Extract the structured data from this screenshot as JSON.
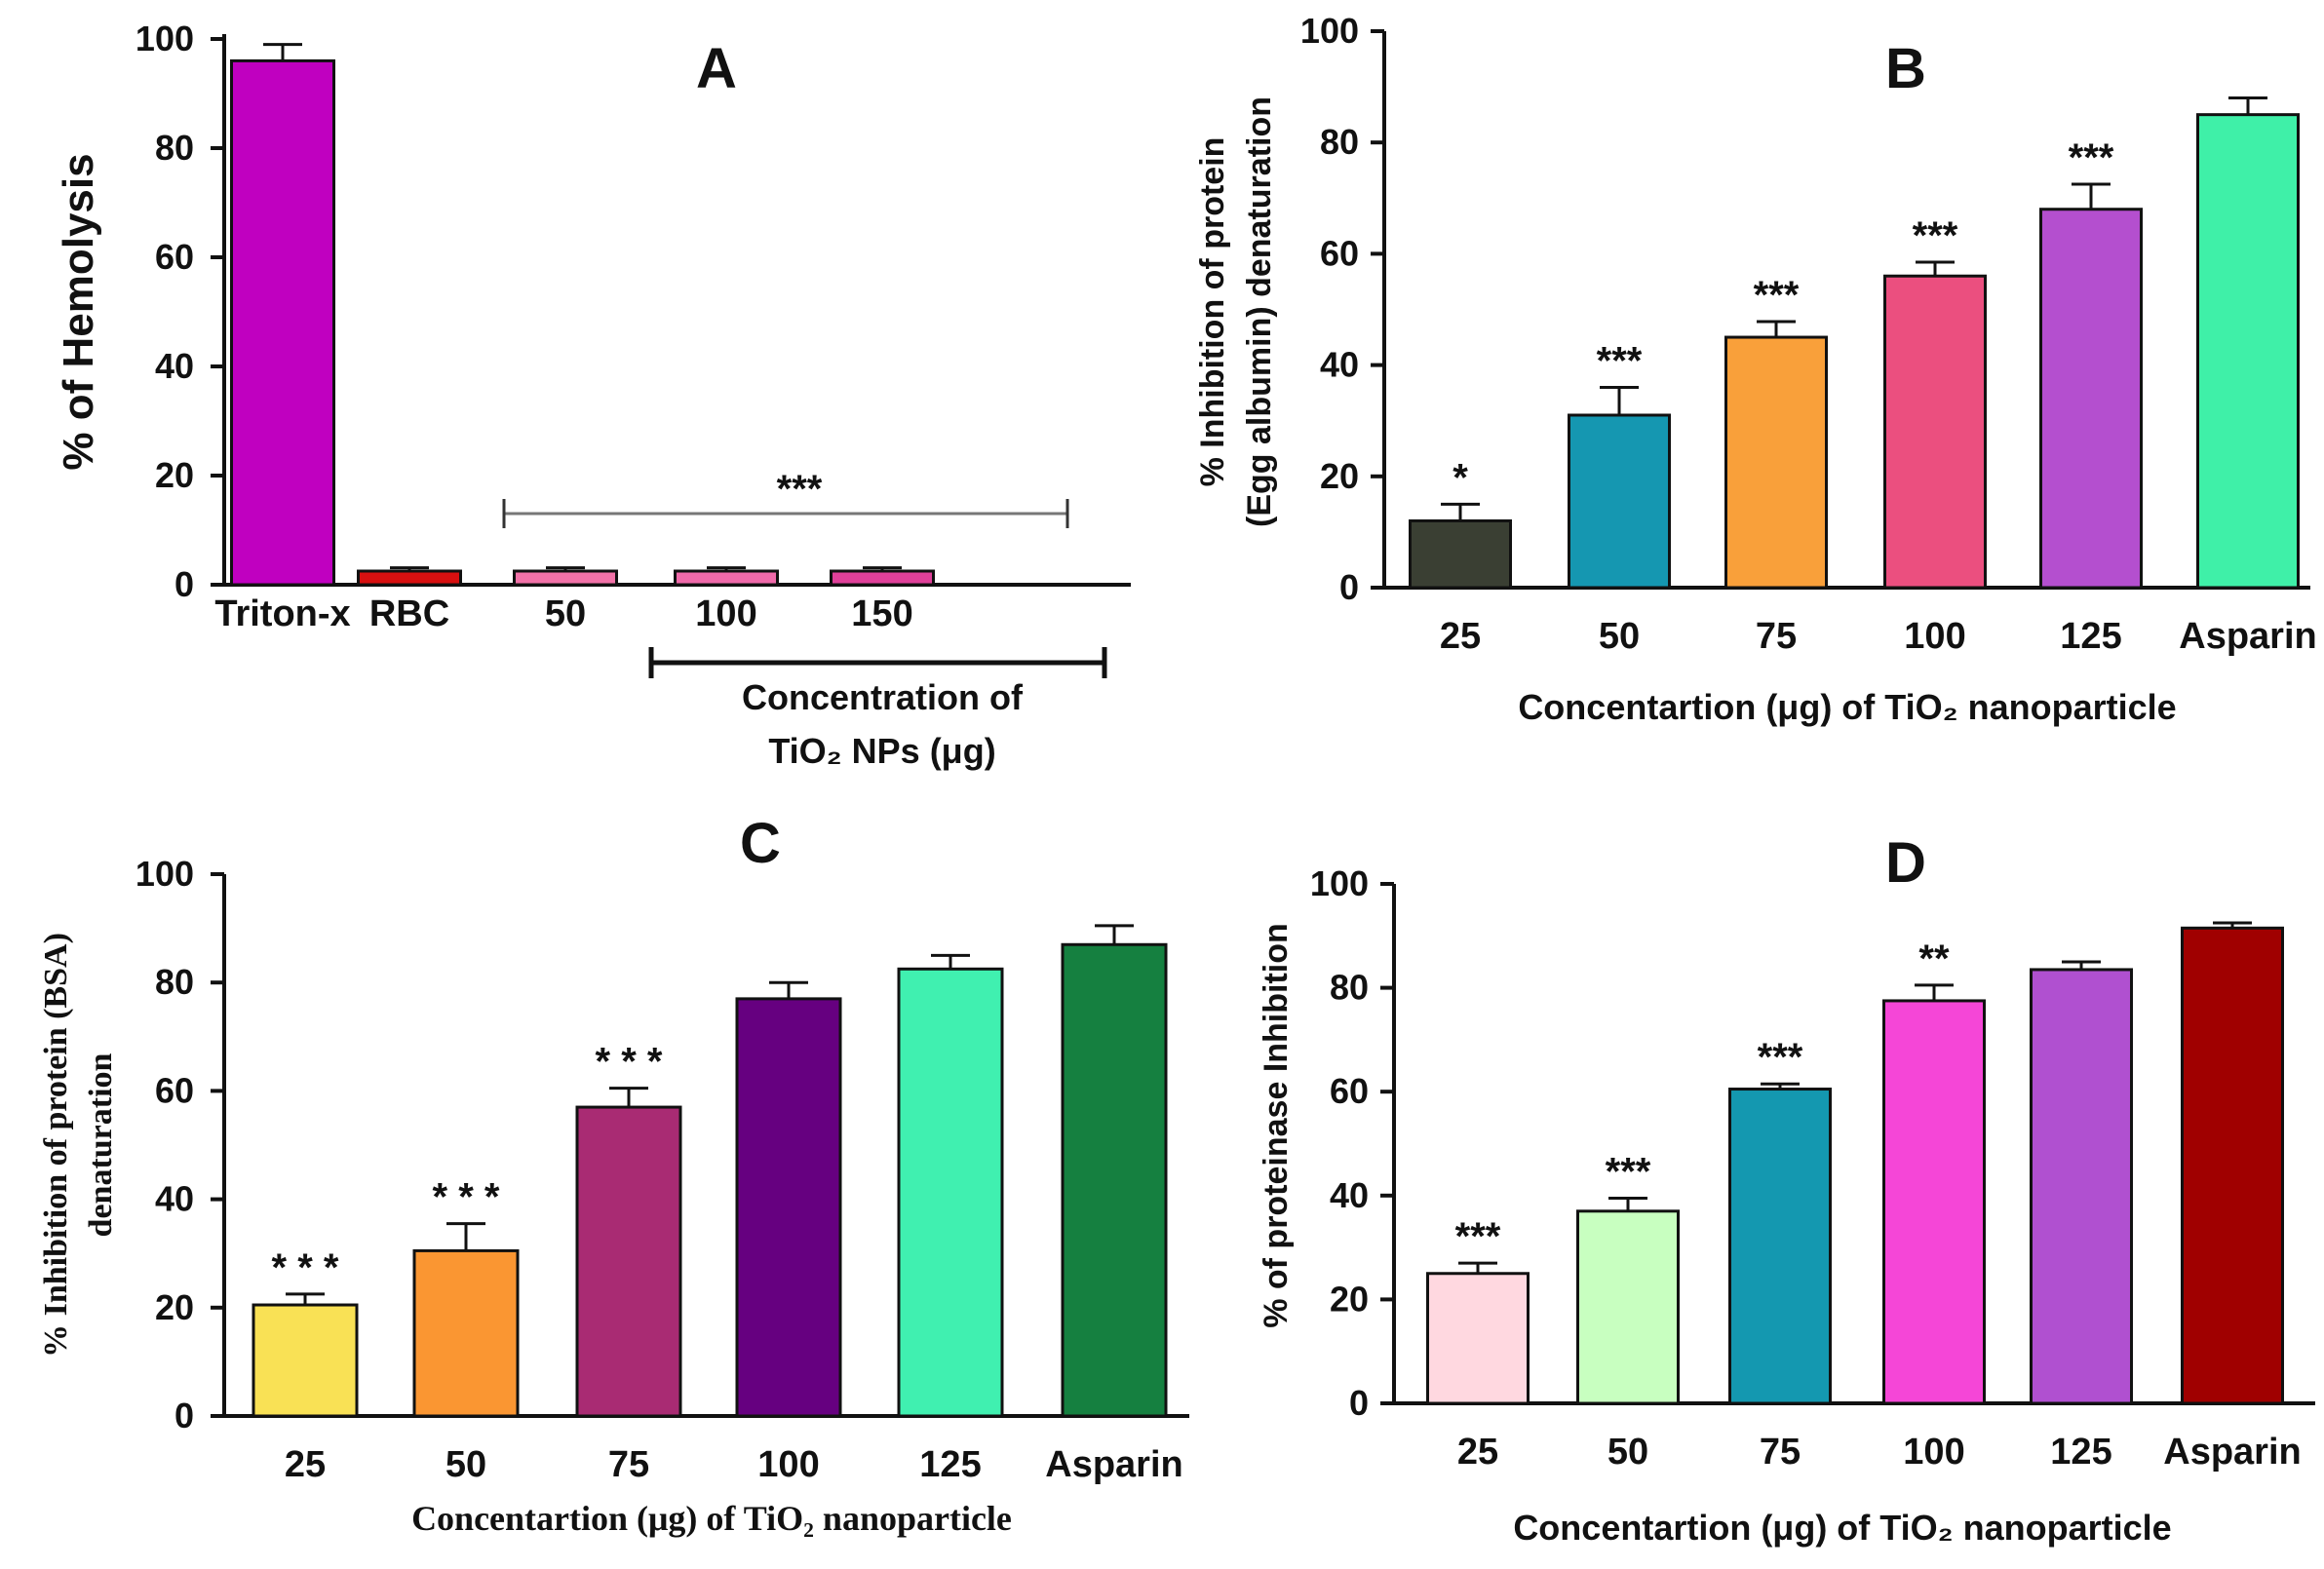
{
  "chart_data": [
    {
      "panel": "A",
      "type": "bar",
      "ylabel": "% of Hemolysis",
      "xlabel_lines": [
        "Concentration of",
        "TiO₂ NPs (μg)"
      ],
      "ylim": [
        0,
        100
      ],
      "yticks": [
        0,
        20,
        40,
        60,
        80,
        100
      ],
      "categories": [
        "Triton-x",
        "RBC",
        "50",
        "100",
        "150"
      ],
      "values": [
        96,
        2.5,
        2.5,
        2.5,
        2.5
      ],
      "errors": [
        3,
        0.6,
        0.6,
        0.6,
        0.6
      ],
      "colors": [
        "#c000c0",
        "#d81010",
        "#f272a8",
        "#f06aaa",
        "#e0409a"
      ],
      "significance_bracket": {
        "from": 1,
        "to": 4,
        "label": "***"
      }
    },
    {
      "panel": "B",
      "type": "bar",
      "ylabel_lines": [
        "% Inhibition of protein",
        "(Egg albumin) denaturation"
      ],
      "xlabel": "Concentartion (μg) of TiO₂ nanoparticle",
      "ylim": [
        0,
        100
      ],
      "yticks": [
        0,
        20,
        40,
        60,
        80,
        100
      ],
      "categories": [
        "25",
        "50",
        "75",
        "100",
        "125",
        "Asparin"
      ],
      "values": [
        12,
        31,
        45,
        56,
        68,
        85
      ],
      "errors": [
        3,
        5,
        2.8,
        2.5,
        4.5,
        3
      ],
      "significance": [
        "*",
        "***",
        "***",
        "***",
        "***",
        ""
      ],
      "colors": [
        "#3a3f33",
        "#1597b1",
        "#f9a03a",
        "#eb4f7f",
        "#b44fcf",
        "#3ff0a8"
      ]
    },
    {
      "panel": "C",
      "type": "bar",
      "ylabel_lines": [
        "% Inhibition of protein (BSA)",
        "denaturation"
      ],
      "xlabel": "Concentartion (μg) of TiO₂ nanoparticle",
      "ylim": [
        0,
        100
      ],
      "yticks": [
        0,
        20,
        40,
        60,
        80,
        100
      ],
      "categories": [
        "25",
        "50",
        "75",
        "100",
        "125",
        "Asparin"
      ],
      "values": [
        20.5,
        30.5,
        57,
        77,
        82.5,
        87
      ],
      "errors": [
        2,
        5,
        3.5,
        3,
        2.5,
        3.5
      ],
      "significance": [
        "* * *",
        "* * *",
        "* * *",
        "",
        "",
        ""
      ],
      "colors": [
        "#f9e155",
        "#fa9632",
        "#a92b73",
        "#660080",
        "#40f0b0",
        "#158040"
      ]
    },
    {
      "panel": "D",
      "type": "bar",
      "ylabel": "% of proteinase Inhibition",
      "xlabel": "Concentartion (μg) of TiO₂ nanoparticle",
      "ylim": [
        0,
        100
      ],
      "yticks": [
        0,
        20,
        40,
        60,
        80,
        100
      ],
      "categories": [
        "25",
        "50",
        "75",
        "100",
        "125",
        "Asparin"
      ],
      "values": [
        25,
        37,
        60.5,
        77.5,
        83.5,
        91.5
      ],
      "errors": [
        2,
        2.5,
        1,
        3,
        1.5,
        1
      ],
      "significance": [
        "***",
        "***",
        "***",
        "**",
        "",
        ""
      ],
      "colors": [
        "#ffd8e0",
        "#c8ffc0",
        "#1498b0",
        "#f546d7",
        "#b050d0",
        "#a00000"
      ]
    }
  ]
}
